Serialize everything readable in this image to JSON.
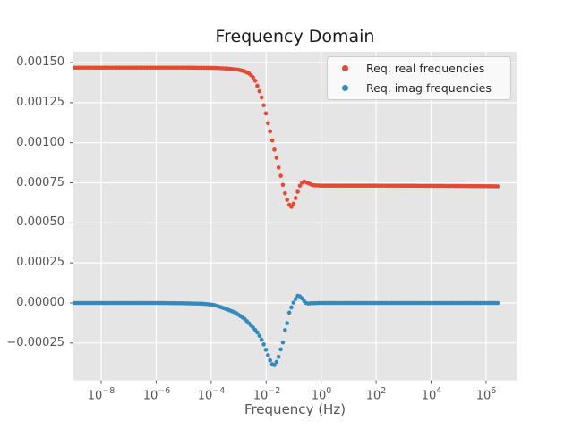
{
  "figure": {
    "title": "Frequency Domain",
    "xlabel": "Frequency (Hz)"
  },
  "axes": {
    "y_tick_labels": [
      "0.00150",
      "0.00125",
      "0.00100",
      "0.00075",
      "0.00050",
      "0.00025",
      "0.00000",
      "−0.00025"
    ],
    "x_tick_base": "10",
    "x_tick_exponents": [
      "−8",
      "−6",
      "−4",
      "−2",
      "0",
      "2",
      "4",
      "6"
    ]
  },
  "legend": {
    "items": [
      {
        "label": "Req. real frequencies",
        "color": "#E24A33",
        "marker": "dot-icon"
      },
      {
        "label": "Req. imag frequencies",
        "color": "#348ABD",
        "marker": "dot-icon"
      }
    ]
  },
  "chart_data": {
    "type": "scatter",
    "title": "Frequency Domain",
    "xlabel": "Frequency (Hz)",
    "ylabel": "",
    "x_scale": "log",
    "grid": true,
    "legend_position": "upper right",
    "background": "#E5E5E5",
    "grid_color": "#FFFFFF",
    "tick_color": "#555555",
    "xlim_log10": [
      -9.01,
      7.11
    ],
    "ylim": [
      -0.000483,
      0.001567
    ],
    "x_tick_log10": [
      -8,
      -6,
      -4,
      -2,
      0,
      2,
      4,
      6
    ],
    "y_ticks": [
      -0.00025,
      0.0,
      0.00025,
      0.0005,
      0.00075,
      0.001,
      0.00125,
      0.0015
    ],
    "points_per_series": 200,
    "sample_log10x_range": [
      -8.97,
      6.42
    ],
    "marker_radius_px": 2.3,
    "series": [
      {
        "name": "Req. real frequencies",
        "color": "#E24A33",
        "anchors_log10x": [
          -8.97,
          -6.0,
          -5.0,
          -4.2,
          -3.8,
          -3.4,
          -3.0,
          -2.8,
          -2.6,
          -2.43,
          -2.33,
          -2.23,
          -2.13,
          -2.07,
          -2.0,
          -1.94,
          -1.87,
          -1.81,
          -1.74,
          -1.68,
          -1.61,
          -1.55,
          -1.48,
          -1.42,
          -1.35,
          -1.29,
          -1.22,
          -1.16,
          -1.1,
          -1.03,
          -0.97,
          -0.87,
          -0.81,
          -0.74,
          -0.64,
          -0.48,
          -0.3,
          0.0,
          2.0,
          4.0,
          6.0,
          6.42
        ],
        "anchors_y": [
          0.001468,
          0.001468,
          0.001468,
          0.001467,
          0.001466,
          0.001462,
          0.001455,
          0.001446,
          0.00143,
          0.0014,
          0.00136,
          0.001316,
          0.001266,
          0.001221,
          0.001177,
          0.001127,
          0.001082,
          0.001037,
          0.000987,
          0.000942,
          0.000898,
          0.000848,
          0.000803,
          0.000758,
          0.000708,
          0.000669,
          0.000636,
          0.000613,
          0.000598,
          0.000607,
          0.000636,
          0.000681,
          0.00072,
          0.000742,
          0.00076,
          0.000748,
          0.000735,
          0.000732,
          0.000732,
          0.000731,
          0.000729,
          0.000728
        ]
      },
      {
        "name": "Req. imag frequencies",
        "color": "#348ABD",
        "anchors_log10x": [
          -8.97,
          -6.0,
          -5.0,
          -4.3,
          -3.9,
          -3.53,
          -3.11,
          -2.78,
          -2.46,
          -2.29,
          -2.13,
          -2.0,
          -1.9,
          -1.8,
          -1.71,
          -1.58,
          -1.48,
          -1.38,
          -1.32,
          -1.22,
          -1.16,
          -1.03,
          -0.93,
          -0.86,
          -0.83,
          -0.7,
          -0.6,
          -0.51,
          -0.4,
          0.0,
          3.0,
          6.42
        ],
        "anchors_y": [
          0.0,
          0.0,
          -2e-06,
          -5e-06,
          -1.2e-05,
          -3.3e-05,
          -6.1e-05,
          -0.0001,
          -0.000156,
          -0.00019,
          -0.00024,
          -0.000296,
          -0.00034,
          -0.000379,
          -0.00039,
          -0.000357,
          -0.000296,
          -0.00024,
          -0.000173,
          -0.000117,
          -6.1e-05,
          -6e-06,
          2.4e-05,
          4.2e-05,
          5e-05,
          3e-05,
          8e-06,
          -5e-06,
          -2e-06,
          0.0,
          0.0,
          0.0
        ]
      }
    ]
  }
}
